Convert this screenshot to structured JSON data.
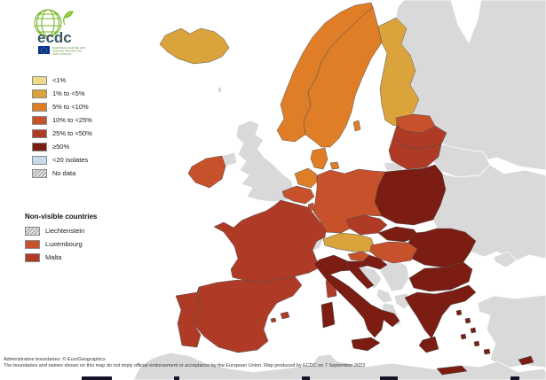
{
  "logo": {
    "wordmark": "ecdc",
    "org_lines": [
      "EUROPEAN CENTRE FOR",
      "DISEASE PREVENTION",
      "AND CONTROL"
    ]
  },
  "legend": {
    "items": [
      {
        "key": "c1",
        "label": "<1%",
        "color": "#EFD98A"
      },
      {
        "key": "c2",
        "label": "1% to <5%",
        "color": "#DBA33C"
      },
      {
        "key": "c3",
        "label": "5% to <10%",
        "color": "#E07E28"
      },
      {
        "key": "c4",
        "label": "10% to <25%",
        "color": "#C7512B"
      },
      {
        "key": "c5",
        "label": "25% to <50%",
        "color": "#AF3B27"
      },
      {
        "key": "c6",
        "label": "≥50%",
        "color": "#7B1D12"
      },
      {
        "key": "c7",
        "label": "<20 isolates",
        "color": "#C9DBE8"
      },
      {
        "key": "c8",
        "label": "No data",
        "color": "hatch"
      }
    ],
    "non_visible": {
      "title": "Non-visible countries",
      "items": [
        {
          "label": "Liechtenstein",
          "color": "hatch"
        },
        {
          "label": "Luxembourg",
          "color": "#C7512B"
        },
        {
          "label": "Malta",
          "color": "#AF3B27"
        }
      ]
    }
  },
  "map": {
    "sea_color": "#ffffff",
    "non_eu_color": "#d9d9d9",
    "countries": {
      "iceland": "c2",
      "norway": "c3",
      "sweden": "c3",
      "gotland": "c3",
      "finland": "c2",
      "denmark": "c3",
      "denmark_islands": "c3",
      "estonia": "c4",
      "latvia": "c5",
      "lithuania": "c5",
      "poland": "c6",
      "germany": "c4",
      "netherlands": "c3",
      "belgium": "c4",
      "luxembourg": "c4",
      "ireland": "c4",
      "france": "c5",
      "corsica": "c5",
      "spain": "c5",
      "portugal": "c5",
      "balearics": "c5",
      "italy": "c6",
      "sicily": "c6",
      "sardinia": "c6",
      "czechia": "c5",
      "slovakia": "c6",
      "austria": "c2",
      "hungary": "c4",
      "slovenia": "c4",
      "croatia": "c6",
      "romania": "c6",
      "bulgaria": "c6",
      "greece": "c6",
      "peloponnese": "c6",
      "crete": "c6",
      "aegean_islands": "c6",
      "cyprus": "c6",
      "united_kingdom": "grey",
      "northern_ireland": "grey",
      "faroe": "grey",
      "switzerland": "grey",
      "russia": "grey",
      "kaliningrad": "grey",
      "belarus": "grey",
      "ukraine": "grey",
      "crimea": "grey",
      "moldova": "grey",
      "bosnia": "grey",
      "serbia": "grey",
      "montenegro": "grey",
      "albania": "grey",
      "north_macedonia": "grey",
      "turkey": "grey",
      "africa": "grey"
    }
  },
  "footer": {
    "line1": "Administrative boundaries: © EuroGeographics",
    "line2": "The boundaries and names shown on this map do not imply official endorsement or acceptance by the European Union. Map produced by ECDC on 7 September 2023"
  }
}
